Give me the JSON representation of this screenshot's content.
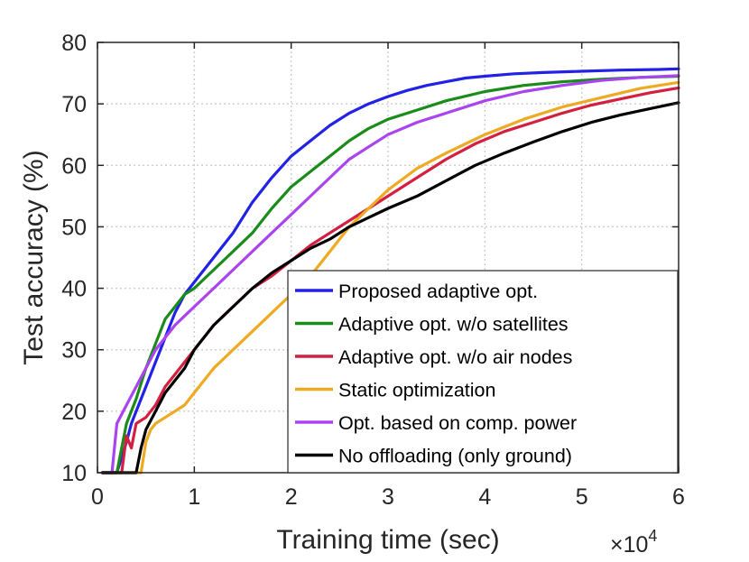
{
  "chart_data": {
    "type": "line",
    "title": "",
    "xlabel": "Training time (sec)",
    "ylabel": "Test accuracy (%)",
    "x_exponent_label": "×10",
    "x_exponent_power": "4",
    "xlim": [
      0,
      6
    ],
    "ylim": [
      10,
      80
    ],
    "xticks": [
      0,
      1,
      2,
      3,
      4,
      5,
      6
    ],
    "yticks": [
      10,
      20,
      30,
      40,
      50,
      60,
      70,
      80
    ],
    "xtick_labels": [
      "0",
      "1",
      "2",
      "3",
      "4",
      "5",
      "6"
    ],
    "ytick_labels": [
      "10",
      "20",
      "30",
      "40",
      "50",
      "60",
      "70",
      "80"
    ],
    "grid": true,
    "legend_position": "bottom-right",
    "series": [
      {
        "name": "Proposed adaptive opt.",
        "color": "#2222e6",
        "x": [
          0.05,
          0.2,
          0.3,
          0.35,
          0.4,
          0.5,
          0.6,
          0.7,
          0.8,
          0.9,
          1.0,
          1.2,
          1.4,
          1.6,
          1.8,
          2.0,
          2.2,
          2.4,
          2.6,
          2.8,
          3.0,
          3.2,
          3.4,
          3.6,
          3.8,
          4.0,
          4.3,
          4.6,
          5.0,
          5.4,
          5.8,
          6.0
        ],
        "y": [
          10,
          10,
          15,
          18,
          20,
          24,
          28,
          32,
          36,
          39,
          41,
          45,
          49,
          54,
          58,
          61.5,
          64,
          66.5,
          68.5,
          70,
          71.2,
          72.2,
          73,
          73.6,
          74.2,
          74.5,
          74.9,
          75.1,
          75.3,
          75.5,
          75.6,
          75.7
        ]
      },
      {
        "name": "Adaptive opt. w/o satellites",
        "color": "#1a8c1a",
        "x": [
          0.05,
          0.2,
          0.25,
          0.3,
          0.4,
          0.5,
          0.6,
          0.7,
          0.8,
          0.9,
          1.0,
          1.2,
          1.4,
          1.6,
          1.8,
          2.0,
          2.2,
          2.4,
          2.6,
          2.8,
          3.0,
          3.3,
          3.6,
          4.0,
          4.4,
          4.8,
          5.2,
          5.6,
          6.0
        ],
        "y": [
          10,
          10,
          14,
          18,
          22,
          27,
          31,
          35,
          37,
          39,
          40,
          43,
          46,
          49,
          53,
          56.5,
          59,
          61.5,
          64,
          66,
          67.5,
          69,
          70.5,
          72,
          73,
          73.6,
          74,
          74.3,
          74.5
        ]
      },
      {
        "name": "Adaptive opt. w/o air nodes",
        "color": "#d42040",
        "x": [
          0.05,
          0.25,
          0.3,
          0.35,
          0.4,
          0.5,
          0.6,
          0.7,
          0.8,
          1.0,
          1.2,
          1.4,
          1.6,
          1.8,
          2.0,
          2.2,
          2.4,
          2.6,
          2.8,
          3.0,
          3.3,
          3.6,
          3.9,
          4.2,
          4.5,
          4.8,
          5.1,
          5.4,
          5.7,
          6.0
        ],
        "y": [
          10,
          10,
          16,
          14,
          18,
          19,
          21,
          24,
          26,
          30,
          34,
          37,
          40,
          42,
          44.5,
          47,
          49,
          51,
          53,
          55,
          58,
          61,
          63.5,
          65.5,
          67,
          68.5,
          69.8,
          70.8,
          71.8,
          72.6
        ]
      },
      {
        "name": "Static optimization",
        "color": "#eeaa22",
        "x": [
          0.05,
          0.45,
          0.5,
          0.55,
          0.6,
          0.7,
          0.8,
          0.9,
          1.0,
          1.1,
          1.2,
          1.4,
          1.6,
          1.8,
          2.0,
          2.2,
          2.4,
          2.6,
          2.8,
          3.0,
          3.3,
          3.6,
          4.0,
          4.4,
          4.8,
          5.2,
          5.6,
          6.0
        ],
        "y": [
          10,
          10,
          15,
          17,
          18,
          19,
          20,
          21,
          23,
          25,
          27,
          30,
          33,
          36,
          39,
          42,
          46,
          50,
          53,
          56,
          59.5,
          62,
          65,
          67.5,
          69.5,
          71,
          72.5,
          73.5
        ]
      },
      {
        "name": "Opt. based on comp. power",
        "color": "#aa44ee",
        "x": [
          0.05,
          0.15,
          0.2,
          0.3,
          0.4,
          0.5,
          0.6,
          0.7,
          0.8,
          0.9,
          1.0,
          1.2,
          1.4,
          1.6,
          1.8,
          2.0,
          2.2,
          2.4,
          2.6,
          2.8,
          3.0,
          3.3,
          3.6,
          4.0,
          4.4,
          4.8,
          5.2,
          5.6,
          6.0
        ],
        "y": [
          10,
          10,
          18,
          21,
          24,
          27,
          30,
          32,
          34,
          35.5,
          37,
          40,
          43,
          46,
          49,
          52,
          55,
          58,
          61,
          63,
          65,
          67,
          68.5,
          70.5,
          72,
          73,
          73.8,
          74.3,
          74.6
        ]
      },
      {
        "name": "No offloading (only ground)",
        "color": "#000000",
        "x": [
          0.05,
          0.4,
          0.45,
          0.5,
          0.6,
          0.7,
          0.8,
          0.9,
          1.0,
          1.2,
          1.4,
          1.6,
          1.8,
          2.0,
          2.2,
          2.4,
          2.6,
          2.8,
          3.0,
          3.3,
          3.6,
          3.9,
          4.2,
          4.5,
          4.8,
          5.1,
          5.4,
          5.7,
          6.0
        ],
        "y": [
          10,
          10,
          14,
          17,
          20,
          23,
          25,
          27,
          30,
          34,
          37,
          40,
          42.5,
          44.5,
          46.5,
          48,
          50,
          51.5,
          53,
          55,
          57.5,
          60,
          62,
          63.8,
          65.5,
          67,
          68.2,
          69.2,
          70.2
        ]
      }
    ]
  }
}
